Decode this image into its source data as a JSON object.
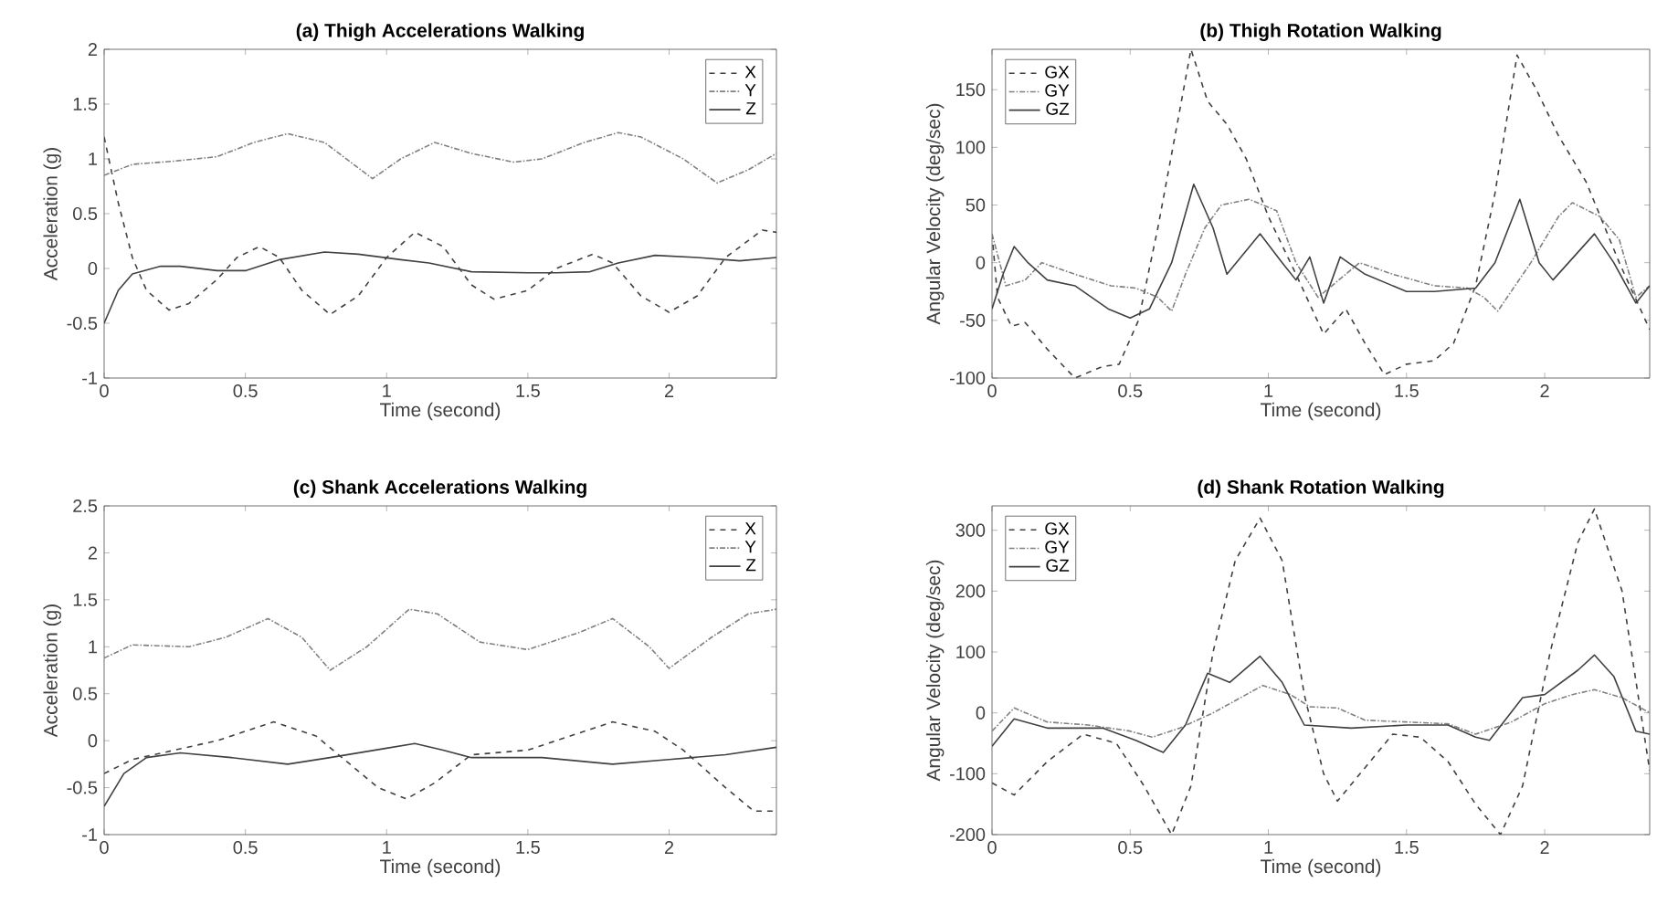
{
  "chart_data": [
    {
      "type": "line",
      "title": "(a) Thigh Accelerations Walking",
      "xlabel": "Time (second)",
      "ylabel": "Acceleration (g)",
      "xlim": [
        0,
        2.38
      ],
      "ylim": [
        -1,
        2
      ],
      "xticks": [
        0,
        0.5,
        1,
        1.5,
        2
      ],
      "yticks": [
        -1,
        -0.5,
        0,
        0.5,
        1,
        1.5,
        2
      ],
      "legend": "top right",
      "grid": false,
      "marker": "none",
      "series": [
        {
          "name": "X",
          "color": "#404040",
          "line_style": "dashed",
          "x": [
            0,
            0.05,
            0.1,
            0.15,
            0.23,
            0.3,
            0.4,
            0.47,
            0.55,
            0.62,
            0.7,
            0.8,
            0.9,
            1.0,
            1.1,
            1.2,
            1.3,
            1.38,
            1.5,
            1.6,
            1.73,
            1.8,
            1.9,
            2.0,
            2.1,
            2.2,
            2.33,
            2.38
          ],
          "values": [
            1.2,
            0.6,
            0.1,
            -0.2,
            -0.38,
            -0.32,
            -0.1,
            0.1,
            0.2,
            0.1,
            -0.2,
            -0.42,
            -0.25,
            0.1,
            0.33,
            0.2,
            -0.15,
            -0.28,
            -0.2,
            0,
            0.13,
            0.05,
            -0.25,
            -0.4,
            -0.25,
            0.1,
            0.35,
            0.33
          ]
        },
        {
          "name": "Y",
          "color": "#808080",
          "line_style": "dotted",
          "x": [
            0,
            0.1,
            0.25,
            0.4,
            0.53,
            0.65,
            0.78,
            0.95,
            1.05,
            1.17,
            1.3,
            1.45,
            1.55,
            1.7,
            1.82,
            1.9,
            2.05,
            2.17,
            2.28,
            2.38
          ],
          "values": [
            0.85,
            0.95,
            0.98,
            1.02,
            1.15,
            1.23,
            1.15,
            0.82,
            1.0,
            1.15,
            1.05,
            0.97,
            1.0,
            1.15,
            1.24,
            1.2,
            1.0,
            0.78,
            0.9,
            1.05
          ]
        },
        {
          "name": "Z",
          "color": "#404040",
          "line_style": "solid",
          "x": [
            0,
            0.05,
            0.1,
            0.2,
            0.27,
            0.4,
            0.5,
            0.62,
            0.78,
            0.9,
            1.05,
            1.15,
            1.3,
            1.5,
            1.6,
            1.72,
            1.82,
            1.95,
            2.1,
            2.25,
            2.38
          ],
          "values": [
            -0.5,
            -0.2,
            -0.05,
            0.02,
            0.02,
            -0.02,
            -0.02,
            0.08,
            0.15,
            0.13,
            0.08,
            0.05,
            -0.03,
            -0.04,
            -0.04,
            -0.03,
            0.05,
            0.12,
            0.1,
            0.07,
            0.1
          ]
        }
      ]
    },
    {
      "type": "line",
      "title": "(b) Thigh Rotation Walking",
      "xlabel": "Time (second)",
      "ylabel": "Angular Velocity (deg/sec)",
      "xlim": [
        0,
        2.38
      ],
      "ylim": [
        -100,
        185
      ],
      "xticks": [
        0,
        0.5,
        1,
        1.5,
        2
      ],
      "yticks": [
        -100,
        -50,
        0,
        50,
        100,
        150
      ],
      "legend": "top left",
      "grid": false,
      "marker": "none",
      "series": [
        {
          "name": "GX",
          "color": "#404040",
          "line_style": "dashed",
          "x": [
            0,
            0.02,
            0.07,
            0.12,
            0.2,
            0.3,
            0.4,
            0.46,
            0.53,
            0.6,
            0.67,
            0.72,
            0.78,
            0.85,
            0.92,
            1.0,
            1.1,
            1.2,
            1.28,
            1.35,
            1.42,
            1.5,
            1.6,
            1.67,
            1.75,
            1.82,
            1.9,
            1.97,
            2.05,
            2.15,
            2.27,
            2.38
          ],
          "values": [
            25,
            -30,
            -55,
            -52,
            -75,
            -100,
            -90,
            -88,
            -50,
            30,
            120,
            185,
            140,
            120,
            90,
            40,
            -10,
            -62,
            -40,
            -70,
            -97,
            -88,
            -85,
            -70,
            -20,
            60,
            180,
            150,
            110,
            70,
            0,
            -58
          ]
        },
        {
          "name": "GY",
          "color": "#808080",
          "line_style": "dotted",
          "x": [
            0,
            0.05,
            0.12,
            0.18,
            0.3,
            0.43,
            0.52,
            0.6,
            0.65,
            0.7,
            0.77,
            0.83,
            0.93,
            1.03,
            1.1,
            1.18,
            1.28,
            1.33,
            1.45,
            1.6,
            1.72,
            1.78,
            1.83,
            1.95,
            2.05,
            2.1,
            2.2,
            2.27,
            2.33,
            2.38
          ],
          "values": [
            25,
            -20,
            -15,
            0,
            -10,
            -20,
            -22,
            -30,
            -42,
            -10,
            30,
            50,
            55,
            45,
            0,
            -30,
            -10,
            0,
            -10,
            -20,
            -22,
            -30,
            -42,
            0,
            40,
            52,
            40,
            20,
            -30,
            -20
          ]
        },
        {
          "name": "GZ",
          "color": "#404040",
          "line_style": "solid",
          "x": [
            0,
            0.04,
            0.08,
            0.13,
            0.2,
            0.3,
            0.42,
            0.5,
            0.57,
            0.65,
            0.73,
            0.8,
            0.85,
            0.97,
            1.05,
            1.1,
            1.15,
            1.2,
            1.26,
            1.35,
            1.5,
            1.6,
            1.75,
            1.82,
            1.91,
            1.98,
            2.03,
            2.18,
            2.25,
            2.33,
            2.38
          ],
          "values": [
            -40,
            -10,
            14,
            0,
            -15,
            -20,
            -40,
            -48,
            -40,
            0,
            68,
            30,
            -10,
            25,
            0,
            -15,
            5,
            -35,
            5,
            -10,
            -25,
            -25,
            -22,
            0,
            55,
            0,
            -15,
            25,
            0,
            -35,
            -20
          ]
        }
      ]
    },
    {
      "type": "line",
      "title": "(c) Shank Accelerations Walking",
      "xlabel": "Time (second)",
      "ylabel": "Acceleration (g)",
      "xlim": [
        0,
        2.38
      ],
      "ylim": [
        -1,
        2.5
      ],
      "xticks": [
        0,
        0.5,
        1,
        1.5,
        2
      ],
      "yticks": [
        -1,
        -0.5,
        0,
        0.5,
        1,
        1.5,
        2,
        2.5
      ],
      "legend": "top right",
      "grid": false,
      "marker": "none",
      "series": [
        {
          "name": "X",
          "color": "#404040",
          "line_style": "dashed",
          "x": [
            0,
            0.1,
            0.25,
            0.4,
            0.6,
            0.75,
            0.85,
            0.97,
            1.07,
            1.17,
            1.3,
            1.5,
            1.65,
            1.8,
            1.95,
            2.05,
            2.2,
            2.3,
            2.38
          ],
          "values": [
            -0.35,
            -0.2,
            -0.1,
            0,
            0.2,
            0.05,
            -0.2,
            -0.5,
            -0.62,
            -0.45,
            -0.15,
            -0.1,
            0.05,
            0.2,
            0.1,
            -0.1,
            -0.5,
            -0.75,
            -0.75
          ]
        },
        {
          "name": "Y",
          "color": "#808080",
          "line_style": "dotted",
          "x": [
            0,
            0.1,
            0.3,
            0.43,
            0.58,
            0.7,
            0.8,
            0.93,
            1.08,
            1.18,
            1.33,
            1.5,
            1.68,
            1.8,
            1.93,
            2.0,
            2.15,
            2.28,
            2.38
          ],
          "values": [
            0.88,
            1.02,
            1.0,
            1.1,
            1.3,
            1.1,
            0.75,
            1.0,
            1.4,
            1.35,
            1.05,
            0.97,
            1.15,
            1.3,
            1.0,
            0.77,
            1.1,
            1.35,
            1.4
          ]
        },
        {
          "name": "Z",
          "color": "#404040",
          "line_style": "solid",
          "x": [
            0,
            0.07,
            0.15,
            0.27,
            0.45,
            0.65,
            0.8,
            1.0,
            1.1,
            1.2,
            1.3,
            1.55,
            1.8,
            2.0,
            2.2,
            2.38
          ],
          "values": [
            -0.7,
            -0.35,
            -0.18,
            -0.13,
            -0.18,
            -0.25,
            -0.18,
            -0.08,
            -0.03,
            -0.1,
            -0.18,
            -0.18,
            -0.25,
            -0.2,
            -0.15,
            -0.07
          ]
        }
      ]
    },
    {
      "type": "line",
      "title": "(d) Shank Rotation Walking",
      "xlabel": "Time (second)",
      "ylabel": "Angular Velocity (deg/sec)",
      "xlim": [
        0,
        2.38
      ],
      "ylim": [
        -200,
        340
      ],
      "xticks": [
        0,
        0.5,
        1,
        1.5,
        2
      ],
      "yticks": [
        -200,
        -100,
        0,
        100,
        200,
        300
      ],
      "legend": "top left",
      "grid": false,
      "marker": "none",
      "series": [
        {
          "name": "GX",
          "color": "#404040",
          "line_style": "dashed",
          "x": [
            0,
            0.08,
            0.2,
            0.33,
            0.45,
            0.55,
            0.65,
            0.72,
            0.8,
            0.88,
            0.97,
            1.05,
            1.13,
            1.2,
            1.25,
            1.35,
            1.45,
            1.55,
            1.65,
            1.75,
            1.84,
            1.92,
            2.02,
            2.12,
            2.18,
            2.28,
            2.38
          ],
          "values": [
            -115,
            -135,
            -80,
            -35,
            -50,
            -120,
            -200,
            -120,
            100,
            250,
            320,
            250,
            30,
            -100,
            -145,
            -90,
            -35,
            -40,
            -80,
            -150,
            -200,
            -120,
            100,
            280,
            335,
            200,
            -95
          ]
        },
        {
          "name": "GY",
          "color": "#808080",
          "line_style": "dotted",
          "x": [
            0,
            0.08,
            0.2,
            0.35,
            0.5,
            0.58,
            0.68,
            0.8,
            0.92,
            0.98,
            1.08,
            1.15,
            1.25,
            1.35,
            1.5,
            1.65,
            1.75,
            1.88,
            2.0,
            2.1,
            2.18,
            2.28,
            2.38
          ],
          "values": [
            -30,
            8,
            -15,
            -20,
            -30,
            -40,
            -25,
            0,
            30,
            45,
            30,
            10,
            8,
            -12,
            -15,
            -18,
            -35,
            -15,
            15,
            30,
            38,
            25,
            0
          ]
        },
        {
          "name": "GZ",
          "color": "#404040",
          "line_style": "solid",
          "x": [
            0,
            0.08,
            0.2,
            0.4,
            0.52,
            0.62,
            0.7,
            0.78,
            0.86,
            0.97,
            1.05,
            1.13,
            1.3,
            1.5,
            1.65,
            1.75,
            1.8,
            1.92,
            2.0,
            2.12,
            2.18,
            2.25,
            2.33,
            2.38
          ],
          "values": [
            -55,
            -10,
            -25,
            -25,
            -45,
            -65,
            -20,
            65,
            50,
            93,
            50,
            -20,
            -25,
            -20,
            -20,
            -40,
            -45,
            25,
            30,
            70,
            95,
            60,
            -30,
            -35
          ]
        }
      ]
    }
  ]
}
